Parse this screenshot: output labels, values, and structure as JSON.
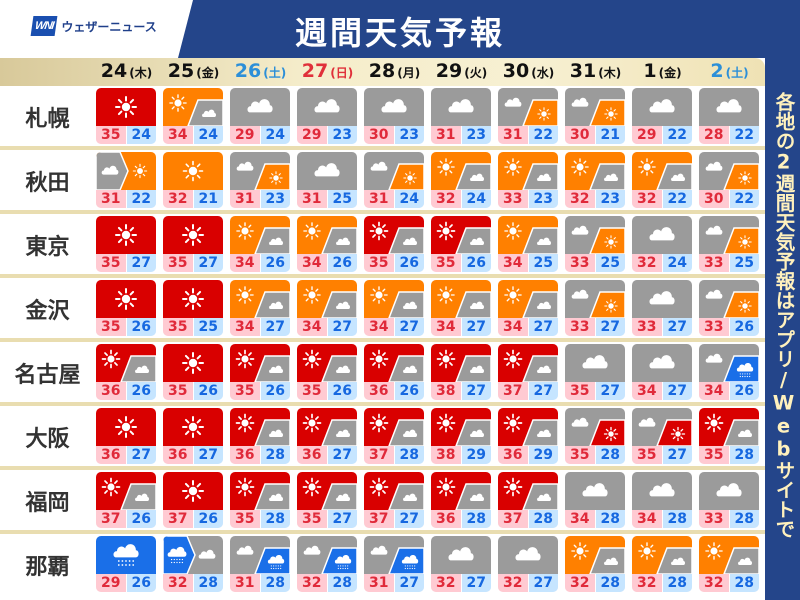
{
  "header": {
    "logo_mark": "WNI",
    "logo_text": "ウェザーニュース",
    "title": "週間天気予報"
  },
  "side_text": "各地の2週間天気予報はアプリ/Webサイトで",
  "colors": {
    "hot": "#d90000",
    "sun": "#ff8000",
    "cloud": "#9b9b9b",
    "rain": "#1a6fe8",
    "navy": "#24458a"
  },
  "days": [
    {
      "num": "24",
      "dow": "(木)",
      "type": "weekday"
    },
    {
      "num": "25",
      "dow": "(金)",
      "type": "weekday"
    },
    {
      "num": "26",
      "dow": "(土)",
      "type": "sat"
    },
    {
      "num": "27",
      "dow": "(日)",
      "type": "sun"
    },
    {
      "num": "28",
      "dow": "(月)",
      "type": "weekday"
    },
    {
      "num": "29",
      "dow": "(火)",
      "type": "weekday"
    },
    {
      "num": "30",
      "dow": "(水)",
      "type": "weekday"
    },
    {
      "num": "31",
      "dow": "(木)",
      "type": "weekday"
    },
    {
      "num": "1",
      "dow": "(金)",
      "type": "weekday"
    },
    {
      "num": "2",
      "dow": "(土)",
      "type": "sat"
    }
  ],
  "cities": [
    {
      "name": "札幌",
      "forecast": [
        {
          "icon": "hot",
          "hi": "35",
          "lo": "24"
        },
        {
          "icon": "sun/cloud",
          "hi": "34",
          "lo": "24"
        },
        {
          "icon": "cloud",
          "hi": "29",
          "lo": "24"
        },
        {
          "icon": "cloud",
          "hi": "29",
          "lo": "23"
        },
        {
          "icon": "cloud",
          "hi": "30",
          "lo": "23"
        },
        {
          "icon": "cloud",
          "hi": "31",
          "lo": "23"
        },
        {
          "icon": "cloud/sun",
          "hi": "31",
          "lo": "22"
        },
        {
          "icon": "cloud/sun",
          "hi": "30",
          "lo": "21"
        },
        {
          "icon": "cloud",
          "hi": "29",
          "lo": "22"
        },
        {
          "icon": "cloud",
          "hi": "28",
          "lo": "22"
        }
      ]
    },
    {
      "name": "秋田",
      "forecast": [
        {
          "icon": "cloud>sun",
          "hi": "31",
          "lo": "22"
        },
        {
          "icon": "sun",
          "hi": "32",
          "lo": "21"
        },
        {
          "icon": "cloud/sun",
          "hi": "31",
          "lo": "23"
        },
        {
          "icon": "cloud",
          "hi": "31",
          "lo": "25"
        },
        {
          "icon": "cloud/sun",
          "hi": "31",
          "lo": "24"
        },
        {
          "icon": "sun/cloud",
          "hi": "32",
          "lo": "24"
        },
        {
          "icon": "sun/cloud",
          "hi": "33",
          "lo": "23"
        },
        {
          "icon": "sun/cloud",
          "hi": "32",
          "lo": "23"
        },
        {
          "icon": "sun/cloud",
          "hi": "32",
          "lo": "22"
        },
        {
          "icon": "cloud/sun",
          "hi": "30",
          "lo": "22"
        }
      ]
    },
    {
      "name": "東京",
      "forecast": [
        {
          "icon": "hot",
          "hi": "35",
          "lo": "27"
        },
        {
          "icon": "hot",
          "hi": "35",
          "lo": "27"
        },
        {
          "icon": "sun/cloud",
          "hi": "34",
          "lo": "26"
        },
        {
          "icon": "sun/cloud",
          "hi": "34",
          "lo": "26"
        },
        {
          "icon": "hot/cloud",
          "hi": "35",
          "lo": "26"
        },
        {
          "icon": "hot/cloud",
          "hi": "35",
          "lo": "26"
        },
        {
          "icon": "sun/cloud",
          "hi": "34",
          "lo": "25"
        },
        {
          "icon": "cloud/sun",
          "hi": "33",
          "lo": "25"
        },
        {
          "icon": "cloud",
          "hi": "32",
          "lo": "24"
        },
        {
          "icon": "cloud/sun",
          "hi": "33",
          "lo": "25"
        }
      ]
    },
    {
      "name": "金沢",
      "forecast": [
        {
          "icon": "hot",
          "hi": "35",
          "lo": "26"
        },
        {
          "icon": "hot",
          "hi": "35",
          "lo": "25"
        },
        {
          "icon": "sun/cloud",
          "hi": "34",
          "lo": "27"
        },
        {
          "icon": "sun/cloud",
          "hi": "34",
          "lo": "27"
        },
        {
          "icon": "sun/cloud",
          "hi": "34",
          "lo": "27"
        },
        {
          "icon": "sun/cloud",
          "hi": "34",
          "lo": "27"
        },
        {
          "icon": "sun/cloud",
          "hi": "34",
          "lo": "27"
        },
        {
          "icon": "cloud/sun",
          "hi": "33",
          "lo": "27"
        },
        {
          "icon": "cloud",
          "hi": "33",
          "lo": "27"
        },
        {
          "icon": "cloud/sun",
          "hi": "33",
          "lo": "26"
        }
      ]
    },
    {
      "name": "名古屋",
      "forecast": [
        {
          "icon": "hot/cloud",
          "hi": "36",
          "lo": "26"
        },
        {
          "icon": "hot",
          "hi": "35",
          "lo": "26"
        },
        {
          "icon": "hot/cloud",
          "hi": "35",
          "lo": "26"
        },
        {
          "icon": "hot/cloud",
          "hi": "35",
          "lo": "26"
        },
        {
          "icon": "hot/cloud",
          "hi": "36",
          "lo": "26"
        },
        {
          "icon": "hot/cloud",
          "hi": "38",
          "lo": "27"
        },
        {
          "icon": "hot/cloud",
          "hi": "37",
          "lo": "27"
        },
        {
          "icon": "cloud",
          "hi": "35",
          "lo": "27"
        },
        {
          "icon": "cloud",
          "hi": "34",
          "lo": "27"
        },
        {
          "icon": "cloud/rain",
          "hi": "34",
          "lo": "26"
        }
      ]
    },
    {
      "name": "大阪",
      "forecast": [
        {
          "icon": "hot",
          "hi": "36",
          "lo": "27"
        },
        {
          "icon": "hot",
          "hi": "36",
          "lo": "27"
        },
        {
          "icon": "hot/cloud",
          "hi": "36",
          "lo": "28"
        },
        {
          "icon": "hot/cloud",
          "hi": "36",
          "lo": "27"
        },
        {
          "icon": "hot/cloud",
          "hi": "37",
          "lo": "28"
        },
        {
          "icon": "hot/cloud",
          "hi": "38",
          "lo": "29"
        },
        {
          "icon": "hot/cloud",
          "hi": "36",
          "lo": "29"
        },
        {
          "icon": "cloud/hot",
          "hi": "35",
          "lo": "28"
        },
        {
          "icon": "cloud/hot",
          "hi": "35",
          "lo": "27"
        },
        {
          "icon": "hot/cloud",
          "hi": "35",
          "lo": "28"
        }
      ]
    },
    {
      "name": "福岡",
      "forecast": [
        {
          "icon": "hot/cloud",
          "hi": "37",
          "lo": "26"
        },
        {
          "icon": "hot",
          "hi": "37",
          "lo": "26"
        },
        {
          "icon": "hot/cloud",
          "hi": "35",
          "lo": "28"
        },
        {
          "icon": "hot/cloud",
          "hi": "35",
          "lo": "27"
        },
        {
          "icon": "hot/cloud",
          "hi": "37",
          "lo": "27"
        },
        {
          "icon": "hot/cloud",
          "hi": "36",
          "lo": "28"
        },
        {
          "icon": "hot/cloud",
          "hi": "37",
          "lo": "28"
        },
        {
          "icon": "cloud",
          "hi": "34",
          "lo": "28"
        },
        {
          "icon": "cloud",
          "hi": "34",
          "lo": "28"
        },
        {
          "icon": "cloud",
          "hi": "33",
          "lo": "28"
        }
      ]
    },
    {
      "name": "那覇",
      "forecast": [
        {
          "icon": "rain",
          "hi": "29",
          "lo": "26"
        },
        {
          "icon": "rain>cloud",
          "hi": "32",
          "lo": "28"
        },
        {
          "icon": "cloud/rain",
          "hi": "31",
          "lo": "28"
        },
        {
          "icon": "cloud/rain",
          "hi": "32",
          "lo": "28"
        },
        {
          "icon": "cloud/rain",
          "hi": "31",
          "lo": "27"
        },
        {
          "icon": "cloud",
          "hi": "32",
          "lo": "27"
        },
        {
          "icon": "cloud",
          "hi": "32",
          "lo": "27"
        },
        {
          "icon": "sun/cloud",
          "hi": "32",
          "lo": "28"
        },
        {
          "icon": "sun/cloud",
          "hi": "32",
          "lo": "28"
        },
        {
          "icon": "sun/cloud",
          "hi": "32",
          "lo": "28"
        }
      ]
    }
  ]
}
